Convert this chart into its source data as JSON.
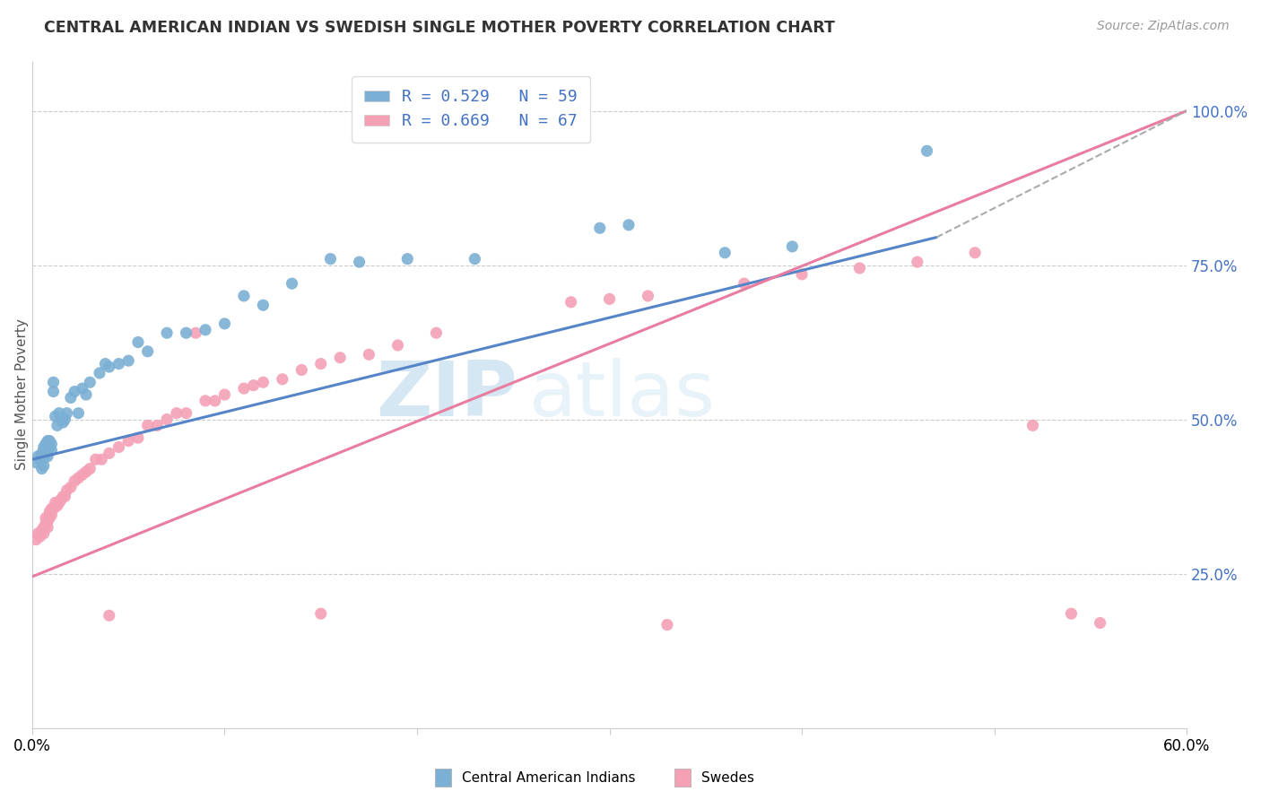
{
  "title": "CENTRAL AMERICAN INDIAN VS SWEDISH SINGLE MOTHER POVERTY CORRELATION CHART",
  "source": "Source: ZipAtlas.com",
  "ylabel": "Single Mother Poverty",
  "xmin": 0.0,
  "xmax": 0.6,
  "ymin": 0.0,
  "ymax": 1.08,
  "x_ticks": [
    0.0,
    0.1,
    0.2,
    0.3,
    0.4,
    0.5,
    0.6
  ],
  "x_tick_labels": [
    "0.0%",
    "",
    "",
    "",
    "",
    "",
    "60.0%"
  ],
  "y_ticks_right": [
    0.25,
    0.5,
    0.75,
    1.0
  ],
  "y_tick_labels_right": [
    "25.0%",
    "50.0%",
    "75.0%",
    "100.0%"
  ],
  "legend_r1": "R = 0.529",
  "legend_n1": "N = 59",
  "legend_r2": "R = 0.669",
  "legend_n2": "N = 67",
  "legend_labels": [
    "Central American Indians",
    "Swedes"
  ],
  "color_blue": "#7bafd4",
  "color_pink": "#f4a0b5",
  "watermark_zip": "ZIP",
  "watermark_atlas": "atlas",
  "blue_line_x": [
    0.0,
    0.47
  ],
  "blue_line_y": [
    0.435,
    0.795
  ],
  "pink_line_x": [
    0.0,
    0.6
  ],
  "pink_line_y": [
    0.245,
    1.0
  ],
  "dashed_line_x": [
    0.47,
    0.6
  ],
  "dashed_line_y": [
    0.795,
    1.0
  ],
  "blue_scatter_x": [
    0.002,
    0.003,
    0.004,
    0.005,
    0.005,
    0.005,
    0.006,
    0.006,
    0.006,
    0.006,
    0.007,
    0.007,
    0.007,
    0.008,
    0.008,
    0.008,
    0.008,
    0.009,
    0.009,
    0.01,
    0.01,
    0.011,
    0.011,
    0.012,
    0.013,
    0.014,
    0.015,
    0.016,
    0.017,
    0.018,
    0.02,
    0.022,
    0.024,
    0.026,
    0.028,
    0.03,
    0.035,
    0.038,
    0.04,
    0.045,
    0.05,
    0.055,
    0.06,
    0.07,
    0.08,
    0.09,
    0.1,
    0.11,
    0.12,
    0.135,
    0.155,
    0.17,
    0.195,
    0.23,
    0.295,
    0.31,
    0.36,
    0.395,
    0.465
  ],
  "blue_scatter_y": [
    0.43,
    0.44,
    0.435,
    0.42,
    0.435,
    0.445,
    0.425,
    0.44,
    0.45,
    0.455,
    0.445,
    0.455,
    0.46,
    0.44,
    0.45,
    0.46,
    0.465,
    0.455,
    0.465,
    0.45,
    0.46,
    0.545,
    0.56,
    0.505,
    0.49,
    0.51,
    0.5,
    0.495,
    0.5,
    0.51,
    0.535,
    0.545,
    0.51,
    0.55,
    0.54,
    0.56,
    0.575,
    0.59,
    0.585,
    0.59,
    0.595,
    0.625,
    0.61,
    0.64,
    0.64,
    0.645,
    0.655,
    0.7,
    0.685,
    0.72,
    0.76,
    0.755,
    0.76,
    0.76,
    0.81,
    0.815,
    0.77,
    0.78,
    0.935
  ],
  "pink_scatter_x": [
    0.002,
    0.003,
    0.004,
    0.005,
    0.006,
    0.006,
    0.007,
    0.007,
    0.008,
    0.008,
    0.009,
    0.009,
    0.01,
    0.01,
    0.011,
    0.012,
    0.013,
    0.014,
    0.015,
    0.016,
    0.017,
    0.018,
    0.02,
    0.022,
    0.024,
    0.026,
    0.028,
    0.03,
    0.033,
    0.036,
    0.04,
    0.045,
    0.05,
    0.055,
    0.06,
    0.065,
    0.07,
    0.075,
    0.08,
    0.09,
    0.095,
    0.1,
    0.11,
    0.115,
    0.12,
    0.13,
    0.14,
    0.15,
    0.16,
    0.175,
    0.19,
    0.21,
    0.28,
    0.3,
    0.32,
    0.37,
    0.4,
    0.43,
    0.46,
    0.49,
    0.04,
    0.085,
    0.15,
    0.33,
    0.52,
    0.54,
    0.555
  ],
  "pink_scatter_y": [
    0.305,
    0.315,
    0.31,
    0.32,
    0.315,
    0.325,
    0.33,
    0.34,
    0.325,
    0.335,
    0.34,
    0.35,
    0.345,
    0.355,
    0.355,
    0.365,
    0.36,
    0.365,
    0.37,
    0.375,
    0.375,
    0.385,
    0.39,
    0.4,
    0.405,
    0.41,
    0.415,
    0.42,
    0.435,
    0.435,
    0.445,
    0.455,
    0.465,
    0.47,
    0.49,
    0.49,
    0.5,
    0.51,
    0.51,
    0.53,
    0.53,
    0.54,
    0.55,
    0.555,
    0.56,
    0.565,
    0.58,
    0.59,
    0.6,
    0.605,
    0.62,
    0.64,
    0.69,
    0.695,
    0.7,
    0.72,
    0.735,
    0.745,
    0.755,
    0.77,
    0.182,
    0.64,
    0.185,
    0.167,
    0.49,
    0.185,
    0.17
  ]
}
